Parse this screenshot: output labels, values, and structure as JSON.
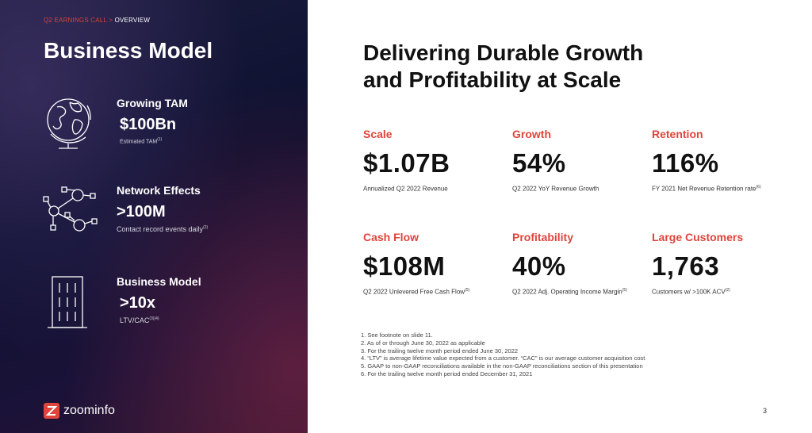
{
  "breadcrumb": {
    "section": "Q2 EARNINGS CALL",
    "separator": ">",
    "page": "OVERVIEW"
  },
  "left": {
    "title": "Business Model",
    "features": [
      {
        "icon": "globe-icon",
        "label": "Growing TAM",
        "value": "$100Bn",
        "sub": "Estimated TAM",
        "sup": "(1)"
      },
      {
        "icon": "network-icon",
        "label": "Network Effects",
        "value": ">100M",
        "sub": "Contact record events daily",
        "sup": "(2)"
      },
      {
        "icon": "building-icon",
        "label": "Business Model",
        "value": ">10x",
        "sub": "LTV/CAC",
        "sup": "(3)(4)"
      }
    ]
  },
  "logo": {
    "mark": "Z",
    "word": "zoominfo"
  },
  "right": {
    "title_line1": "Delivering Durable Growth",
    "title_line2": "and Profitability at Scale",
    "metrics": [
      {
        "label": "Scale",
        "value": "$1.07B",
        "desc": "Annualized Q2 2022 Revenue",
        "sup": ""
      },
      {
        "label": "Growth",
        "value": "54%",
        "desc": "Q2 2022 YoY Revenue Growth",
        "sup": ""
      },
      {
        "label": "Retention",
        "value": "116%",
        "desc": "FY 2021 Net Revenue Retention rate",
        "sup": "(6)"
      },
      {
        "label": "Cash Flow",
        "value": "$108M",
        "desc": "Q2 2022 Unlevered Free Cash Flow",
        "sup": "(5)"
      },
      {
        "label": "Profitability",
        "value": "40%",
        "desc": "Q2 2022 Adj. Operating Income Margin",
        "sup": "(5)"
      },
      {
        "label": "Large Customers",
        "value": "1,763",
        "desc": "Customers w/ >100K ACV",
        "sup": "(2)"
      }
    ],
    "footnotes": [
      "1.  See footnote on slide 11.",
      "2.  As of or through June 30, 2022 as applicable",
      "3.  For the trailing twelve month period ended June 30, 2022",
      "4.  “LTV” is average lifetime value expected from a customer. “CAC” is our average customer acquisition cost",
      "5.  GAAP to non-GAAP reconciliations available in the non-GAAP reconciliations section of this presentation",
      "6.  For the trailing twelve month period ended December 31, 2021"
    ],
    "page_number": "3"
  },
  "colors": {
    "accent": "#e0443b",
    "dark_panel": "#0d1030",
    "text": "#111111"
  }
}
